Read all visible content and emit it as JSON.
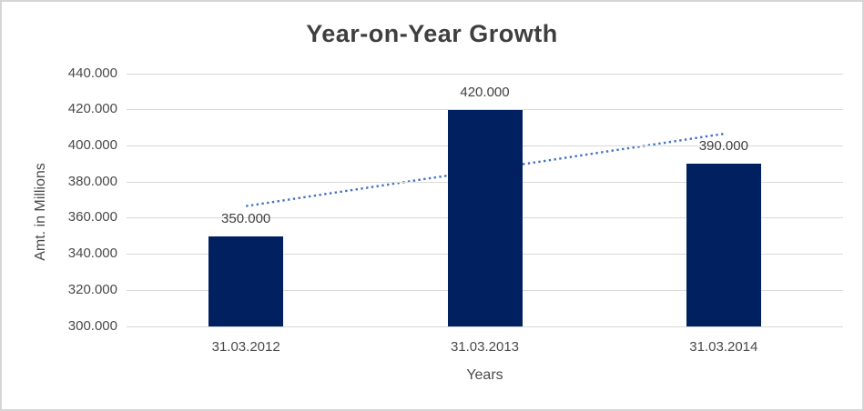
{
  "chart": {
    "title": "Year-on-Year Growth",
    "y_axis_title": "Amt. in Millions",
    "x_axis_title": "Years"
  },
  "chart_data": {
    "type": "bar",
    "title": "Year-on-Year Growth",
    "xlabel": "Years",
    "ylabel": "Amt. in Millions",
    "categories": [
      "31.03.2012",
      "31.03.2013",
      "31.03.2014"
    ],
    "values": [
      350000,
      420000,
      390000
    ],
    "data_labels": [
      "350.000",
      "420.000",
      "390.000"
    ],
    "ylim": [
      300000,
      440000
    ],
    "ytick_step": 20000,
    "ytick_labels": [
      "440.000",
      "420.000",
      "400.000",
      "380.000",
      "360.000",
      "340.000",
      "320.000",
      "300.000"
    ],
    "grid": true,
    "legend": false,
    "bar_color": "#002060",
    "trendline": {
      "type": "linear",
      "style": "dotted",
      "color": "#4472C4",
      "endpoint_values": [
        366667,
        406667
      ]
    },
    "colors": {
      "gridline": "#D9D9D9",
      "title_text": "#3F3F3F",
      "axis_text": "#4A4A4A",
      "data_label_text": "#404040",
      "border": "#D6D6D6",
      "background": "#FFFFFF"
    }
  }
}
